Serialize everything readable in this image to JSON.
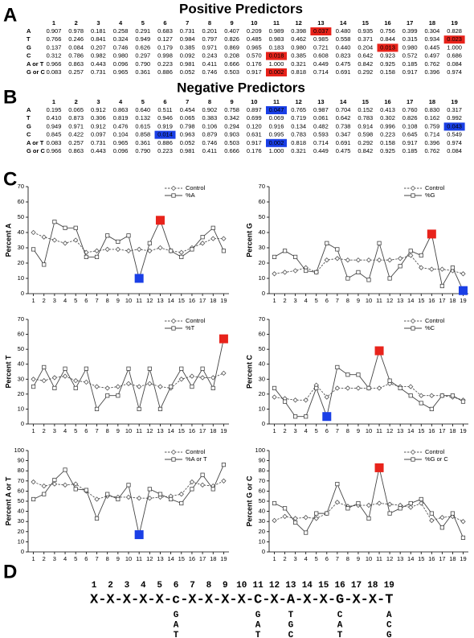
{
  "panel_labels": [
    "A",
    "B",
    "C",
    "D"
  ],
  "tables": [
    {
      "title": "Positive Predictors",
      "highlight_color": "#e8231b",
      "columns": [
        "1",
        "2",
        "3",
        "4",
        "5",
        "6",
        "7",
        "8",
        "9",
        "10",
        "11",
        "12",
        "13",
        "14",
        "15",
        "16",
        "17",
        "18",
        "19"
      ],
      "rows": [
        {
          "label": "A",
          "cells": [
            "0.907",
            "0.978",
            "0.181",
            "0.258",
            "0.291",
            "0.683",
            "0.731",
            "0.201",
            "0.407",
            "0.209",
            "0.989",
            "0.398",
            "0.037",
            "0.480",
            "0.935",
            "0.756",
            "0.399",
            "0.304",
            "0.828"
          ],
          "highlight": [
            12
          ]
        },
        {
          "label": "T",
          "cells": [
            "0.766",
            "0.246",
            "0.841",
            "0.324",
            "0.949",
            "0.127",
            "0.984",
            "0.797",
            "0.826",
            "0.485",
            "0.983",
            "0.462",
            "0.985",
            "0.558",
            "0.371",
            "0.844",
            "0.315",
            "0.934",
            "0.023"
          ],
          "highlight": [
            18
          ]
        },
        {
          "label": "G",
          "cells": [
            "0.137",
            "0.084",
            "0.207",
            "0.746",
            "0.626",
            "0.179",
            "0.385",
            "0.971",
            "0.869",
            "0.965",
            "0.183",
            "0.980",
            "0.721",
            "0.440",
            "0.204",
            "0.013",
            "0.980",
            "0.445",
            "1.000"
          ],
          "highlight": [
            15
          ]
        },
        {
          "label": "C",
          "cells": [
            "0.312",
            "0.786",
            "0.982",
            "0.980",
            "0.297",
            "0.998",
            "0.092",
            "0.243",
            "0.208",
            "0.570",
            "0.018",
            "0.385",
            "0.608",
            "0.823",
            "0.642",
            "0.923",
            "0.572",
            "0.497",
            "0.686"
          ],
          "highlight": [
            10
          ]
        },
        {
          "label": "A or T",
          "cells": [
            "0.966",
            "0.863",
            "0.443",
            "0.096",
            "0.790",
            "0.223",
            "0.981",
            "0.411",
            "0.666",
            "0.176",
            "1.000",
            "0.321",
            "0.449",
            "0.475",
            "0.842",
            "0.925",
            "0.185",
            "0.762",
            "0.084"
          ],
          "highlight": []
        },
        {
          "label": "G or C",
          "cells": [
            "0.083",
            "0.257",
            "0.731",
            "0.965",
            "0.361",
            "0.886",
            "0.052",
            "0.746",
            "0.503",
            "0.917",
            "0.002",
            "0.818",
            "0.714",
            "0.691",
            "0.292",
            "0.158",
            "0.917",
            "0.396",
            "0.974"
          ],
          "highlight": [
            10
          ]
        }
      ]
    },
    {
      "title": "Negative Predictors",
      "highlight_color": "#1a3fe6",
      "columns": [
        "1",
        "2",
        "3",
        "4",
        "5",
        "6",
        "7",
        "8",
        "9",
        "10",
        "11",
        "12",
        "13",
        "14",
        "15",
        "16",
        "17",
        "18",
        "19"
      ],
      "rows": [
        {
          "label": "A",
          "cells": [
            "0.195",
            "0.065",
            "0.912",
            "0.863",
            "0.640",
            "0.511",
            "0.454",
            "0.902",
            "0.758",
            "0.897",
            "0.047",
            "0.765",
            "0.987",
            "0.704",
            "0.152",
            "0.413",
            "0.760",
            "0.830",
            "0.317"
          ],
          "highlight": [
            10
          ]
        },
        {
          "label": "T",
          "cells": [
            "0.410",
            "0.873",
            "0.306",
            "0.819",
            "0.132",
            "0.946",
            "0.065",
            "0.383",
            "0.342",
            "0.699",
            "0.069",
            "0.719",
            "0.061",
            "0.642",
            "0.783",
            "0.302",
            "0.826",
            "0.162",
            "0.992"
          ],
          "highlight": []
        },
        {
          "label": "G",
          "cells": [
            "0.949",
            "0.971",
            "0.912",
            "0.476",
            "0.615",
            "0.919",
            "0.798",
            "0.106",
            "0.294",
            "0.120",
            "0.916",
            "0.134",
            "0.482",
            "0.738",
            "0.914",
            "0.996",
            "0.108",
            "0.759",
            "0.043"
          ],
          "highlight": [
            18
          ]
        },
        {
          "label": "C",
          "cells": [
            "0.845",
            "0.422",
            "0.097",
            "0.104",
            "0.858",
            "0.014",
            "0.963",
            "0.879",
            "0.903",
            "0.631",
            "0.995",
            "0.783",
            "0.593",
            "0.347",
            "0.598",
            "0.223",
            "0.645",
            "0.714",
            "0.549"
          ],
          "highlight": [
            5
          ]
        },
        {
          "label": "A or T",
          "cells": [
            "0.083",
            "0.257",
            "0.731",
            "0.965",
            "0.361",
            "0.886",
            "0.052",
            "0.746",
            "0.503",
            "0.917",
            "0.002",
            "0.818",
            "0.714",
            "0.691",
            "0.292",
            "0.158",
            "0.917",
            "0.396",
            "0.974"
          ],
          "highlight": [
            10
          ]
        },
        {
          "label": "G or C",
          "cells": [
            "0.966",
            "0.863",
            "0.443",
            "0.096",
            "0.790",
            "0.223",
            "0.981",
            "0.411",
            "0.666",
            "0.176",
            "1.000",
            "0.321",
            "0.449",
            "0.475",
            "0.842",
            "0.925",
            "0.185",
            "0.762",
            "0.084"
          ],
          "highlight": []
        }
      ]
    }
  ],
  "chart_data": [
    {
      "type": "line",
      "ylabel": "Percent A",
      "x": [
        1,
        2,
        3,
        4,
        5,
        6,
        7,
        8,
        9,
        10,
        11,
        12,
        13,
        14,
        15,
        16,
        17,
        18,
        19
      ],
      "xlim": [
        0.5,
        19.5
      ],
      "xticks": [
        1,
        2,
        3,
        4,
        5,
        6,
        7,
        8,
        9,
        10,
        11,
        12,
        13,
        14,
        15,
        16,
        17,
        18,
        19
      ],
      "ylim": [
        0,
        70
      ],
      "yticks": [
        0,
        10,
        20,
        30,
        40,
        50,
        60,
        70
      ],
      "legend": "upper right",
      "series": [
        {
          "name": "Control",
          "color": "#555555",
          "dashed": true,
          "marker": "diamond",
          "values": [
            40,
            37,
            35,
            33,
            35,
            27,
            28,
            29,
            29,
            28,
            29,
            28,
            30,
            28,
            27,
            30,
            33,
            36,
            36
          ]
        },
        {
          "name": "%A",
          "color": "#444444",
          "dashed": false,
          "marker": "square",
          "values": [
            29,
            19,
            47,
            43,
            43,
            24,
            24,
            38,
            34,
            38,
            10,
            33,
            48,
            28,
            24,
            29,
            37,
            43,
            28
          ]
        }
      ],
      "highlights": [
        {
          "x": 11,
          "color": "#1a3fe6"
        },
        {
          "x": 13,
          "color": "#e8231b"
        }
      ]
    },
    {
      "type": "line",
      "ylabel": "Percent G",
      "x": [
        1,
        2,
        3,
        4,
        5,
        6,
        7,
        8,
        9,
        10,
        11,
        12,
        13,
        14,
        15,
        16,
        17,
        18,
        19
      ],
      "xlim": [
        0.5,
        19.5
      ],
      "xticks": [
        1,
        2,
        3,
        4,
        5,
        6,
        7,
        8,
        9,
        10,
        11,
        12,
        13,
        14,
        15,
        16,
        17,
        18,
        19
      ],
      "ylim": [
        0,
        70
      ],
      "yticks": [
        0,
        10,
        20,
        30,
        40,
        50,
        60,
        70
      ],
      "legend": "upper right",
      "series": [
        {
          "name": "Control",
          "color": "#555555",
          "dashed": true,
          "marker": "diamond",
          "values": [
            13,
            14,
            15,
            17,
            14,
            22,
            23,
            22,
            22,
            22,
            22,
            22,
            23,
            25,
            17,
            16,
            16,
            15,
            13
          ]
        },
        {
          "name": "%G",
          "color": "#444444",
          "dashed": false,
          "marker": "square",
          "values": [
            24,
            28,
            24,
            15,
            14,
            33,
            29,
            10,
            14,
            9,
            33,
            10,
            18,
            28,
            25,
            39,
            5,
            17,
            2
          ]
        }
      ],
      "highlights": [
        {
          "x": 16,
          "color": "#e8231b"
        },
        {
          "x": 19,
          "color": "#1a3fe6"
        }
      ]
    },
    {
      "type": "line",
      "ylabel": "Percent T",
      "x": [
        1,
        2,
        3,
        4,
        5,
        6,
        7,
        8,
        9,
        10,
        11,
        12,
        13,
        14,
        15,
        16,
        17,
        18,
        19
      ],
      "xlim": [
        0.5,
        19.5
      ],
      "xticks": [
        1,
        2,
        3,
        4,
        5,
        6,
        7,
        8,
        9,
        10,
        11,
        12,
        13,
        14,
        15,
        16,
        17,
        18,
        19
      ],
      "ylim": [
        0,
        70
      ],
      "yticks": [
        0,
        10,
        20,
        30,
        40,
        50,
        60,
        70
      ],
      "legend": "upper right",
      "series": [
        {
          "name": "Control",
          "color": "#555555",
          "dashed": true,
          "marker": "diamond",
          "values": [
            30,
            29,
            31,
            32,
            29,
            28,
            25,
            24,
            25,
            27,
            25,
            27,
            25,
            24,
            30,
            32,
            31,
            31,
            34
          ]
        },
        {
          "name": "%T",
          "color": "#444444",
          "dashed": false,
          "marker": "square",
          "values": [
            25,
            38,
            24,
            37,
            24,
            37,
            10,
            19,
            19,
            37,
            10,
            37,
            10,
            25,
            37,
            25,
            37,
            24,
            57
          ]
        }
      ],
      "highlights": [
        {
          "x": 19,
          "color": "#e8231b"
        }
      ]
    },
    {
      "type": "line",
      "ylabel": "Percent C",
      "x": [
        1,
        2,
        3,
        4,
        5,
        6,
        7,
        8,
        9,
        10,
        11,
        12,
        13,
        14,
        15,
        16,
        17,
        18,
        19
      ],
      "xlim": [
        0.5,
        19.5
      ],
      "xticks": [
        1,
        2,
        3,
        4,
        5,
        6,
        7,
        8,
        9,
        10,
        11,
        12,
        13,
        14,
        15,
        16,
        17,
        18,
        19
      ],
      "ylim": [
        0,
        70
      ],
      "yticks": [
        0,
        10,
        20,
        30,
        40,
        50,
        60,
        70
      ],
      "legend": "upper right",
      "series": [
        {
          "name": "Control",
          "color": "#555555",
          "dashed": true,
          "marker": "diamond",
          "values": [
            18,
            17,
            16,
            16,
            26,
            18,
            24,
            24,
            24,
            24,
            24,
            27,
            25,
            25,
            19,
            19,
            19,
            18,
            16
          ]
        },
        {
          "name": "%C",
          "color": "#444444",
          "dashed": false,
          "marker": "square",
          "values": [
            24,
            15,
            5,
            5,
            24,
            5,
            38,
            33,
            33,
            24,
            49,
            29,
            24,
            19,
            14,
            10,
            19,
            19,
            15
          ]
        }
      ],
      "highlights": [
        {
          "x": 6,
          "color": "#1a3fe6"
        },
        {
          "x": 11,
          "color": "#e8231b"
        }
      ]
    },
    {
      "type": "line",
      "ylabel": "Percent A or T",
      "x": [
        1,
        2,
        3,
        4,
        5,
        6,
        7,
        8,
        9,
        10,
        11,
        12,
        13,
        14,
        15,
        16,
        17,
        18,
        19
      ],
      "xlim": [
        0.5,
        19.5
      ],
      "xticks": [
        1,
        2,
        3,
        4,
        5,
        6,
        7,
        8,
        9,
        10,
        11,
        12,
        13,
        14,
        15,
        16,
        17,
        18,
        19
      ],
      "ylim": [
        0,
        100
      ],
      "yticks": [
        0,
        10,
        20,
        30,
        40,
        50,
        60,
        70,
        80,
        90,
        100
      ],
      "legend": "upper right",
      "series": [
        {
          "name": "Control",
          "color": "#555555",
          "dashed": true,
          "marker": "diamond",
          "values": [
            69,
            65,
            67,
            66,
            67,
            60,
            52,
            55,
            54,
            54,
            53,
            53,
            54,
            55,
            57,
            69,
            66,
            65,
            70
          ]
        },
        {
          "name": "%A or T",
          "color": "#444444",
          "dashed": false,
          "marker": "square",
          "values": [
            52,
            57,
            71,
            81,
            62,
            61,
            33,
            57,
            52,
            66,
            17,
            62,
            57,
            52,
            48,
            62,
            76,
            62,
            86
          ]
        }
      ],
      "highlights": [
        {
          "x": 11,
          "color": "#1a3fe6"
        }
      ]
    },
    {
      "type": "line",
      "ylabel": "Percent G or C",
      "x": [
        1,
        2,
        3,
        4,
        5,
        6,
        7,
        8,
        9,
        10,
        11,
        12,
        13,
        14,
        15,
        16,
        17,
        18,
        19
      ],
      "xlim": [
        0.5,
        19.5
      ],
      "xticks": [
        1,
        2,
        3,
        4,
        5,
        6,
        7,
        8,
        9,
        10,
        11,
        12,
        13,
        14,
        15,
        16,
        17,
        18,
        19
      ],
      "ylim": [
        0,
        100
      ],
      "yticks": [
        0,
        10,
        20,
        30,
        40,
        50,
        60,
        70,
        80,
        90,
        100
      ],
      "legend": "upper right",
      "series": [
        {
          "name": "Control",
          "color": "#555555",
          "dashed": true,
          "marker": "diamond",
          "values": [
            31,
            35,
            33,
            34,
            33,
            38,
            49,
            45,
            46,
            46,
            48,
            47,
            46,
            44,
            48,
            31,
            34,
            35,
            30
          ]
        },
        {
          "name": "%G or C",
          "color": "#444444",
          "dashed": false,
          "marker": "square",
          "values": [
            48,
            43,
            29,
            19,
            38,
            38,
            67,
            43,
            48,
            33,
            83,
            38,
            43,
            48,
            52,
            38,
            24,
            38,
            14
          ]
        }
      ],
      "highlights": [
        {
          "x": 11,
          "color": "#e8231b"
        }
      ]
    }
  ],
  "motif": {
    "positions": [
      1,
      2,
      3,
      4,
      5,
      6,
      7,
      8,
      9,
      10,
      11,
      12,
      13,
      14,
      15,
      16,
      17,
      18,
      19
    ],
    "sequence": "X-X-X-X-X-c-X-X-X-X-C-X-A-X-X-G-X-X-T",
    "alternatives": [
      {
        "position": 6,
        "letters": [
          "G",
          "A",
          "T"
        ]
      },
      {
        "position": 11,
        "letters": [
          "G",
          "A",
          "T"
        ]
      },
      {
        "position": 13,
        "letters": [
          "T",
          "G",
          "C"
        ]
      },
      {
        "position": 16,
        "letters": [
          "C",
          "A",
          "T"
        ]
      },
      {
        "position": 19,
        "letters": [
          "A",
          "C",
          "G"
        ]
      }
    ]
  }
}
